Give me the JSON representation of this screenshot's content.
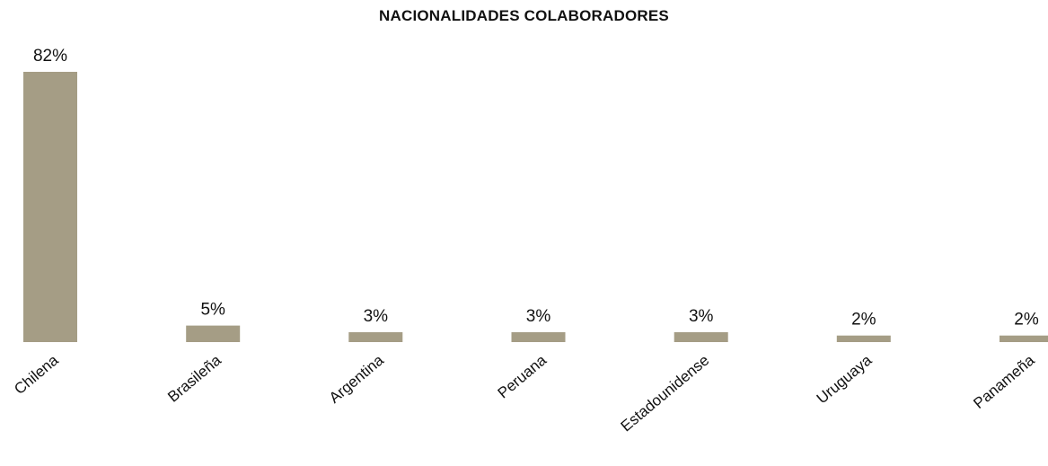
{
  "chart_data": {
    "type": "bar",
    "title": "NACIONALIDADES COLABORADORES",
    "categories": [
      "Chilena",
      "Brasileña",
      "Argentina",
      "Peruana",
      "Estadounidense",
      "Uruguaya",
      "Panameña"
    ],
    "values": [
      82,
      5,
      3,
      3,
      3,
      2,
      2
    ],
    "value_labels": [
      "82%",
      "5%",
      "3%",
      "3%",
      "3%",
      "2%",
      "2%"
    ],
    "ylim": [
      0,
      82
    ],
    "grid": false,
    "legend": "none",
    "bar_color": "#a59d85"
  }
}
